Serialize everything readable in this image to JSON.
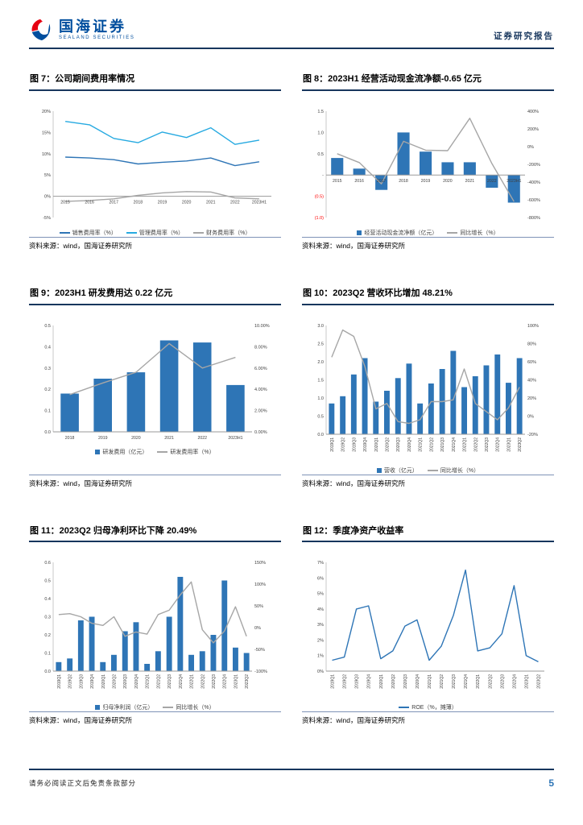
{
  "header": {
    "brand_cn": "国海证券",
    "brand_en": "SEALAND SECURITIES",
    "doc_type": "证券研究报告"
  },
  "footer": {
    "disclaimer": "请务必阅读正文后免责条款部分",
    "page": "5"
  },
  "colors": {
    "brand_blue": "#004E9E",
    "accent_red": "#E60012",
    "rule_navy": "#17365D",
    "bar_blue": "#2E75B6",
    "light_blue": "#27AAE1",
    "line_gray": "#A6A6A6"
  },
  "chart_data": [
    {
      "title": "图 7：公司期间费用率情况",
      "source": "资料来源：wind，国海证券研究所",
      "type": "line",
      "h": 146,
      "x_labels_at_zero": true,
      "categories": [
        "2015",
        "2016",
        "2017",
        "2018",
        "2019",
        "2020",
        "2021",
        "2022",
        "2023H1"
      ],
      "left_axis": {
        "min": -5,
        "max": 20,
        "ticks": [
          {
            "v": 20,
            "t": "20%"
          },
          {
            "v": 15,
            "t": "15%"
          },
          {
            "v": 10,
            "t": "10%"
          },
          {
            "v": 5,
            "t": "5%"
          },
          {
            "v": 0,
            "t": "0%"
          },
          {
            "v": -5,
            "t": "-5%"
          }
        ]
      },
      "series": [
        {
          "name": "销售费用率（%）",
          "kind": "line",
          "axis": "left",
          "color": "#2E75B6",
          "values": [
            9.2,
            9.0,
            8.6,
            7.6,
            8.0,
            8.3,
            9.0,
            7.2,
            8.1
          ]
        },
        {
          "name": "管理费用率（%）",
          "kind": "line",
          "axis": "left",
          "color": "#27AAE1",
          "values": [
            17.6,
            16.8,
            13.6,
            12.6,
            15.1,
            13.8,
            16.1,
            12.2,
            13.2
          ]
        },
        {
          "name": "财务费用率（%）",
          "kind": "line",
          "axis": "left",
          "color": "#A6A6A6",
          "values": [
            -1.2,
            -1.0,
            -0.6,
            0.2,
            0.8,
            1.1,
            1.0,
            -0.4,
            -0.6
          ]
        }
      ]
    },
    {
      "title": "图 8：2023H1 经营活动现金流净额-0.65 亿元",
      "source": "资料来源：wind，国海证券研究所",
      "type": "combo",
      "h": 146,
      "x_labels_at_zero": true,
      "categories": [
        "2015",
        "2016",
        "2017",
        "2018",
        "2019",
        "2020",
        "2021",
        "2022",
        "2023H1"
      ],
      "left_axis": {
        "min": -1.0,
        "max": 1.5,
        "ticks": [
          {
            "v": 1.5,
            "t": "1.5"
          },
          {
            "v": 1.0,
            "t": "1.0"
          },
          {
            "v": 0.5,
            "t": "0.5"
          },
          {
            "v": 0,
            "t": "-"
          },
          {
            "v": -0.5,
            "t": "(0.5)",
            "red": true
          },
          {
            "v": -1.0,
            "t": "(1.0)",
            "red": true
          }
        ]
      },
      "right_axis": {
        "min": -800,
        "max": 400,
        "ticks": [
          {
            "v": 400,
            "t": "400%"
          },
          {
            "v": 200,
            "t": "200%"
          },
          {
            "v": 0,
            "t": "0%"
          },
          {
            "v": -200,
            "t": "-200%"
          },
          {
            "v": -400,
            "t": "-400%"
          },
          {
            "v": -600,
            "t": "-600%"
          },
          {
            "v": -800,
            "t": "-800%"
          }
        ]
      },
      "series": [
        {
          "name": "经营活动现金流净额（亿元）",
          "kind": "bar",
          "axis": "left",
          "color": "#2E75B6",
          "values": [
            0.4,
            0.15,
            -0.35,
            1.0,
            0.55,
            0.3,
            0.3,
            -0.3,
            -0.65
          ]
        },
        {
          "name": "同比增长（%）",
          "kind": "line",
          "axis": "right",
          "color": "#A6A6A6",
          "values": [
            -80,
            -180,
            -420,
            60,
            -40,
            -45,
            320,
            -190,
            -620
          ]
        }
      ]
    },
    {
      "title": "图 9：2023H1 研发费用达 0.22 亿元",
      "source": "资料来源：wind，国海证券研究所",
      "type": "combo",
      "h": 152,
      "categories": [
        "2018",
        "2019",
        "2020",
        "2021",
        "2022",
        "2023H1"
      ],
      "left_axis": {
        "min": 0,
        "max": 0.5,
        "ticks": [
          {
            "v": 0.5,
            "t": "0.5"
          },
          {
            "v": 0.4,
            "t": "0.4"
          },
          {
            "v": 0.3,
            "t": "0.3"
          },
          {
            "v": 0.2,
            "t": "0.2"
          },
          {
            "v": 0.1,
            "t": "0.1"
          },
          {
            "v": 0,
            "t": "0.0"
          }
        ]
      },
      "right_axis": {
        "min": 0,
        "max": 10,
        "ticks": [
          {
            "v": 10,
            "t": "10.00%"
          },
          {
            "v": 8,
            "t": "8.00%"
          },
          {
            "v": 6,
            "t": "6.00%"
          },
          {
            "v": 4,
            "t": "4.00%"
          },
          {
            "v": 2,
            "t": "2.00%"
          },
          {
            "v": 0,
            "t": "0.00%"
          }
        ]
      },
      "series": [
        {
          "name": "研发费用（亿元）",
          "kind": "bar",
          "axis": "left",
          "color": "#2E75B6",
          "values": [
            0.18,
            0.25,
            0.28,
            0.43,
            0.42,
            0.22
          ]
        },
        {
          "name": "研发费用率（%）",
          "kind": "line",
          "axis": "right",
          "color": "#A6A6A6",
          "values": [
            3.5,
            4.6,
            5.6,
            8.3,
            6.0,
            7.0
          ]
        }
      ]
    },
    {
      "title": "图 10：2023Q2 营收环比增加 48.21%",
      "source": "资料来源：wind，国海证券研究所",
      "type": "combo",
      "h": 175,
      "rotate_x": true,
      "categories": [
        "2019Q1",
        "2019Q2",
        "2019Q3",
        "2019Q4",
        "2020Q1",
        "2020Q2",
        "2020Q3",
        "2020Q4",
        "2021Q1",
        "2021Q2",
        "2021Q3",
        "2021Q4",
        "2022Q1",
        "2022Q2",
        "2022Q3",
        "2022Q4",
        "2023Q1",
        "2023Q2"
      ],
      "left_axis": {
        "min": 0,
        "max": 3,
        "ticks": [
          {
            "v": 3,
            "t": "3.0"
          },
          {
            "v": 2.5,
            "t": "2.5"
          },
          {
            "v": 2,
            "t": "2.0"
          },
          {
            "v": 1.5,
            "t": "1.5"
          },
          {
            "v": 1,
            "t": "1.0"
          },
          {
            "v": 0.5,
            "t": "0.5"
          },
          {
            "v": 0,
            "t": "0.0"
          }
        ]
      },
      "right_axis": {
        "min": -20,
        "max": 100,
        "ticks": [
          {
            "v": 100,
            "t": "100%"
          },
          {
            "v": 80,
            "t": "80%"
          },
          {
            "v": 60,
            "t": "60%"
          },
          {
            "v": 40,
            "t": "40%"
          },
          {
            "v": 20,
            "t": "20%"
          },
          {
            "v": 0,
            "t": "0%"
          },
          {
            "v": -20,
            "t": "-20%"
          }
        ]
      },
      "series": [
        {
          "name": "营收（亿元）",
          "kind": "bar",
          "axis": "left",
          "color": "#2E75B6",
          "values": [
            0.85,
            1.05,
            1.65,
            2.1,
            0.9,
            1.2,
            1.55,
            1.95,
            0.85,
            1.4,
            1.8,
            2.3,
            1.3,
            1.6,
            1.9,
            2.2,
            1.42,
            2.1
          ]
        },
        {
          "name": "同比增长（%）",
          "kind": "line",
          "axis": "right",
          "color": "#A6A6A6",
          "values": [
            65,
            95,
            88,
            55,
            8,
            14,
            -6,
            -8,
            -4,
            16,
            16,
            18,
            52,
            14,
            5,
            -4,
            9,
            32
          ]
        }
      ]
    },
    {
      "title": "图 11：2023Q2 归母净利环比下降 20.49%",
      "source": "资料来源：wind，国海证券研究所",
      "type": "combo",
      "h": 175,
      "rotate_x": true,
      "categories": [
        "2019Q1",
        "2019Q2",
        "2019Q3",
        "2019Q4",
        "2020Q1",
        "2020Q2",
        "2020Q3",
        "2020Q4",
        "2021Q1",
        "2021Q2",
        "2021Q3",
        "2021Q4",
        "2022Q1",
        "2022Q2",
        "2022Q3",
        "2022Q4",
        "2023Q1",
        "2023Q2"
      ],
      "left_axis": {
        "min": 0,
        "max": 0.6,
        "ticks": [
          {
            "v": 0.6,
            "t": "0.6"
          },
          {
            "v": 0.5,
            "t": "0.5"
          },
          {
            "v": 0.4,
            "t": "0.4"
          },
          {
            "v": 0.3,
            "t": "0.3"
          },
          {
            "v": 0.2,
            "t": "0.2"
          },
          {
            "v": 0.1,
            "t": "0.1"
          },
          {
            "v": 0,
            "t": "0.0"
          }
        ]
      },
      "right_axis": {
        "min": -100,
        "max": 150,
        "ticks": [
          {
            "v": 150,
            "t": "150%"
          },
          {
            "v": 100,
            "t": "100%"
          },
          {
            "v": 50,
            "t": "50%"
          },
          {
            "v": 0,
            "t": "0%"
          },
          {
            "v": -50,
            "t": "-50%"
          },
          {
            "v": -100,
            "t": "-100%"
          }
        ]
      },
      "series": [
        {
          "name": "归母净利润（亿元）",
          "kind": "bar",
          "axis": "left",
          "color": "#2E75B6",
          "values": [
            0.05,
            0.07,
            0.28,
            0.3,
            0.05,
            0.09,
            0.22,
            0.27,
            0.04,
            0.11,
            0.3,
            0.52,
            0.09,
            0.11,
            0.2,
            0.5,
            0.13,
            0.1
          ]
        },
        {
          "name": "同比增长（%）",
          "kind": "line",
          "axis": "right",
          "color": "#A6A6A6",
          "values": [
            30,
            32,
            25,
            10,
            5,
            25,
            -20,
            -10,
            -15,
            30,
            40,
            75,
            105,
            -5,
            -35,
            -8,
            48,
            -20
          ]
        }
      ]
    },
    {
      "title": "图 12：季度净资产收益率",
      "source": "资料来源：wind，国海证券研究所",
      "type": "line",
      "h": 175,
      "rotate_x": true,
      "categories": [
        "2019Q1",
        "2019Q2",
        "2019Q3",
        "2019Q4",
        "2020Q1",
        "2020Q2",
        "2020Q3",
        "2020Q4",
        "2021Q1",
        "2021Q2",
        "2021Q3",
        "2021Q4",
        "2022Q1",
        "2022Q2",
        "2022Q3",
        "2022Q4",
        "2023Q1",
        "2023Q2"
      ],
      "left_axis": {
        "min": 0,
        "max": 7,
        "ticks": [
          {
            "v": 7,
            "t": "7%"
          },
          {
            "v": 6,
            "t": "6%"
          },
          {
            "v": 5,
            "t": "5%"
          },
          {
            "v": 4,
            "t": "4%"
          },
          {
            "v": 3,
            "t": "3%"
          },
          {
            "v": 2,
            "t": "2%"
          },
          {
            "v": 1,
            "t": "1%"
          },
          {
            "v": 0,
            "t": "0%"
          }
        ]
      },
      "series": [
        {
          "name": "ROE（%，摊薄）",
          "kind": "line",
          "axis": "left",
          "color": "#2E75B6",
          "values": [
            0.7,
            0.9,
            4.0,
            4.2,
            0.8,
            1.3,
            2.9,
            3.3,
            0.7,
            1.6,
            3.6,
            6.5,
            1.3,
            1.5,
            2.4,
            5.5,
            1.0,
            0.6
          ]
        }
      ]
    }
  ]
}
